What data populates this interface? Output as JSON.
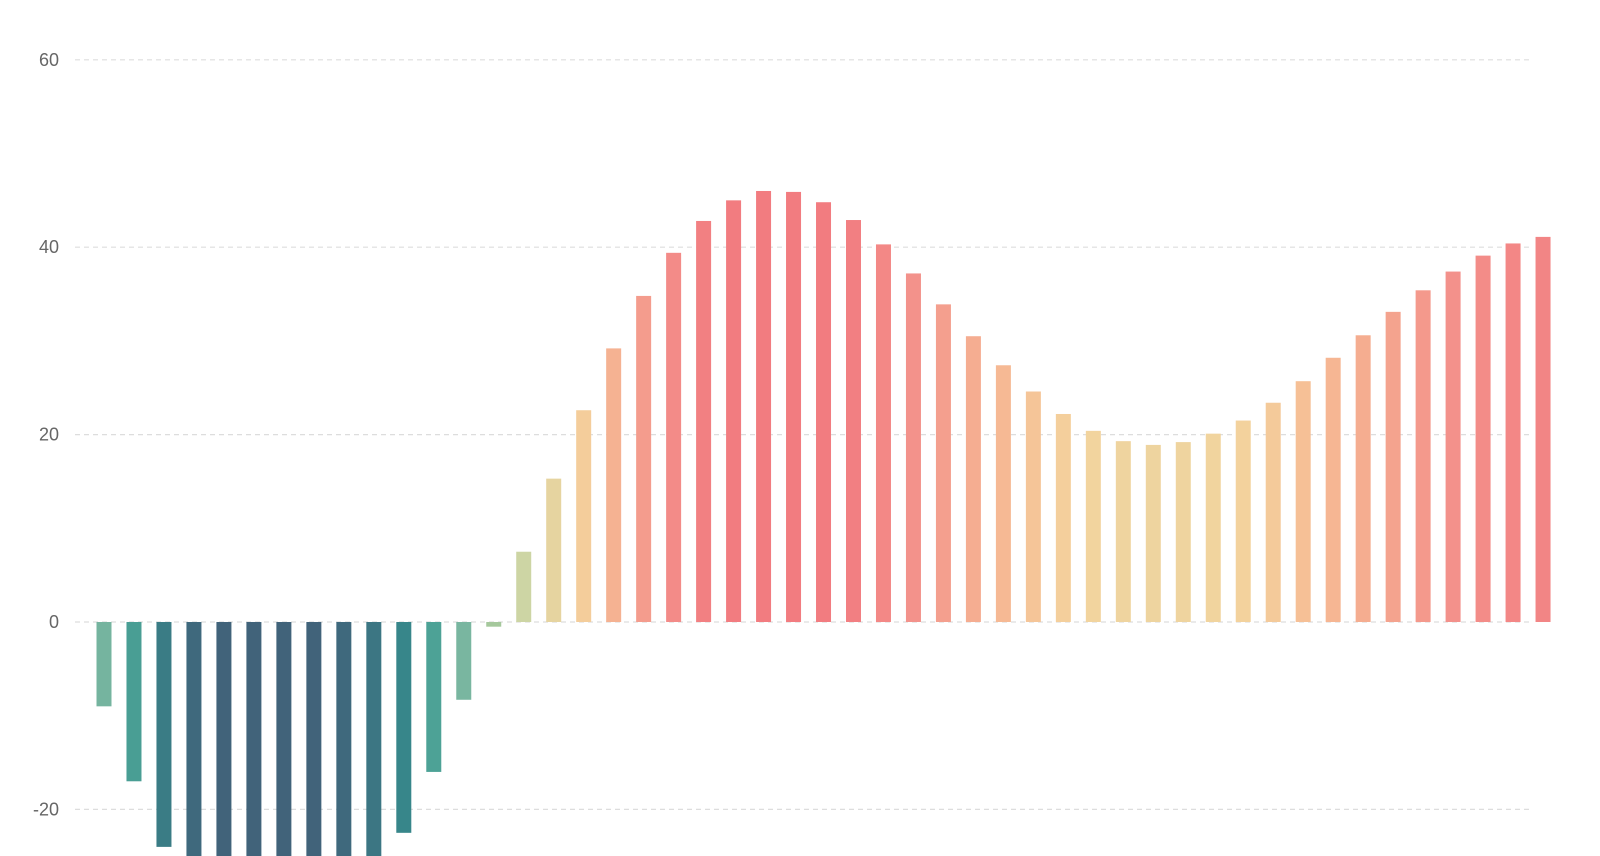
{
  "chart_data": {
    "type": "bar",
    "title": "",
    "xlabel": "",
    "ylabel": "",
    "ylim": [
      -25,
      65
    ],
    "yticks": [
      60,
      40,
      20,
      0,
      -20
    ],
    "ytick_labels": [
      "60",
      "40",
      "20",
      "0",
      "-20"
    ],
    "grid": true,
    "values": [
      -9,
      -17,
      -24,
      -27,
      -28,
      -28,
      -28,
      -28,
      -27,
      -25,
      -22.5,
      -16,
      -8.3,
      -0.5,
      7.5,
      15.3,
      22.6,
      29.2,
      34.8,
      39.4,
      42.8,
      45.0,
      46.0,
      45.9,
      44.8,
      42.9,
      40.3,
      37.2,
      33.9,
      30.5,
      27.4,
      24.6,
      22.2,
      20.4,
      19.3,
      18.9,
      19.2,
      20.1,
      21.5,
      23.4,
      25.7,
      28.2,
      30.6,
      33.1,
      35.4,
      37.4,
      39.1,
      40.4,
      41.1
    ],
    "color_scale": {
      "stops": [
        {
          "value": -28,
          "color": "#41637a"
        },
        {
          "value": -22,
          "color": "#36898b"
        },
        {
          "value": -16,
          "color": "#4da296"
        },
        {
          "value": -8,
          "color": "#7bb7a0"
        },
        {
          "value": 0,
          "color": "#a8c99c"
        },
        {
          "value": 8,
          "color": "#cfd6a4"
        },
        {
          "value": 16,
          "color": "#e8d4a0"
        },
        {
          "value": 21,
          "color": "#f3d49e"
        },
        {
          "value": 26,
          "color": "#f6bf96"
        },
        {
          "value": 31,
          "color": "#f5ab90"
        },
        {
          "value": 38,
          "color": "#f38f8a"
        },
        {
          "value": 44,
          "color": "#f27c80"
        }
      ]
    }
  }
}
